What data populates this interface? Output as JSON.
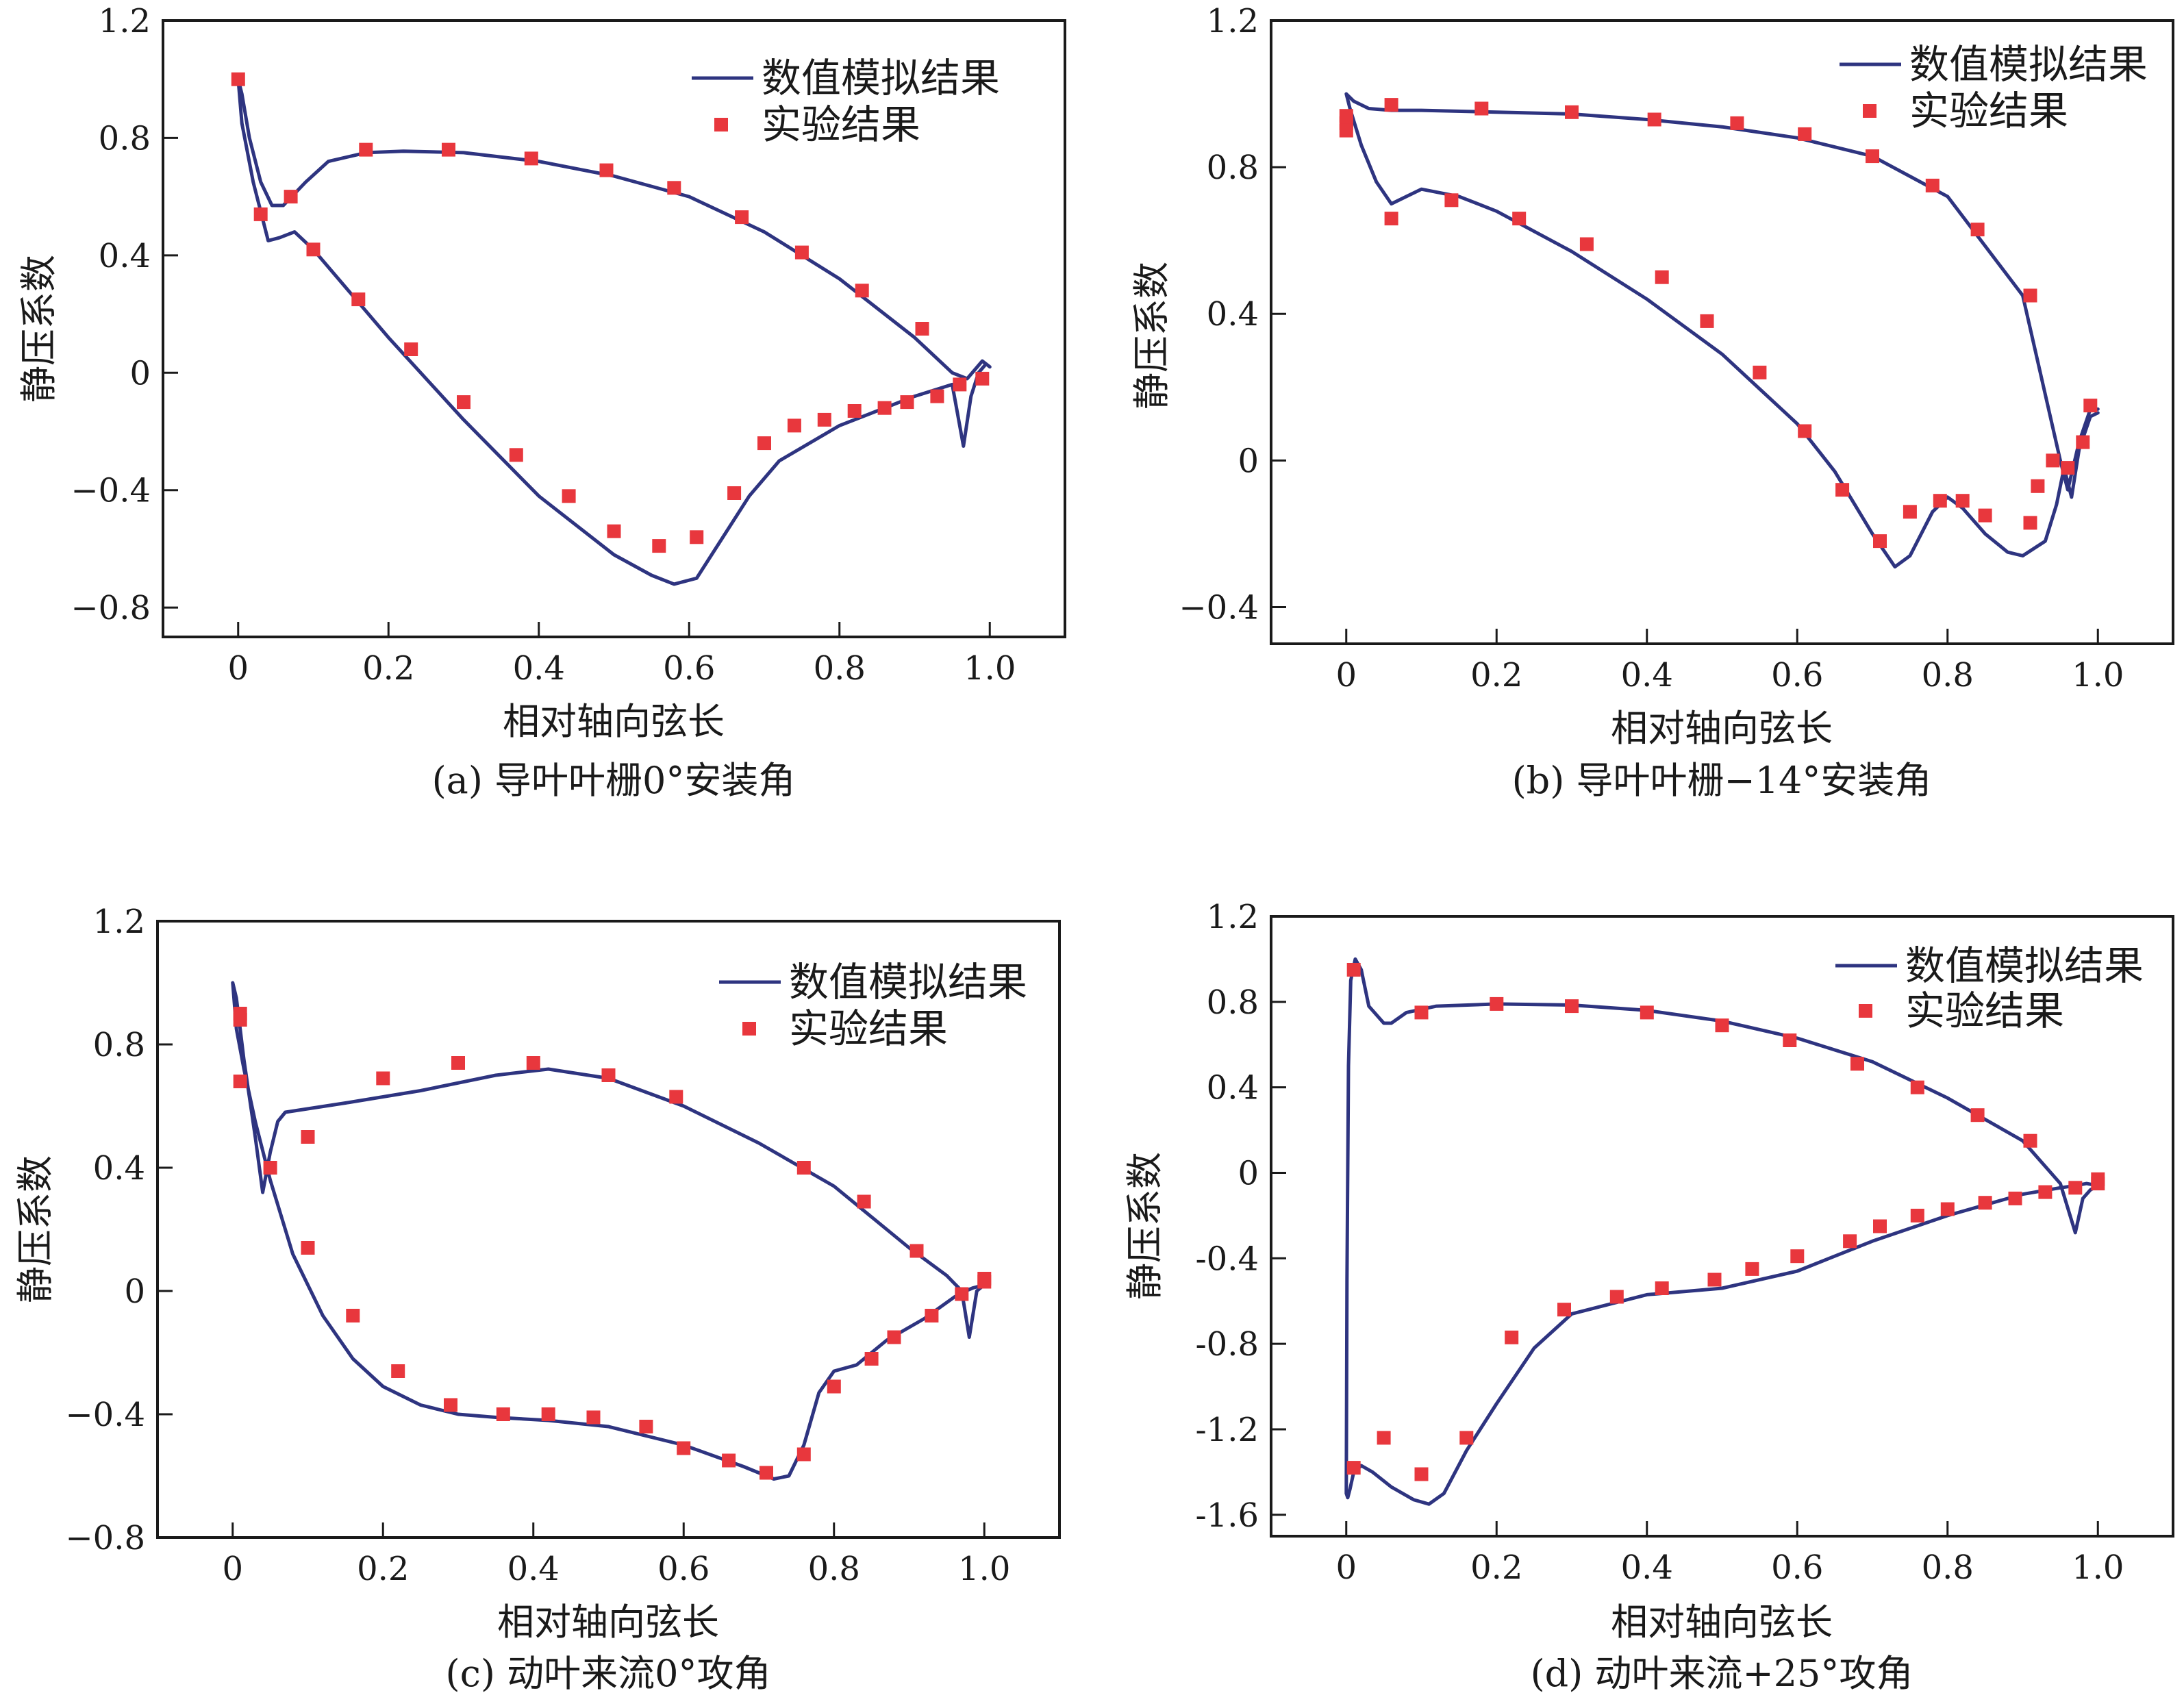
{
  "colors": {
    "line": "#2e3480",
    "marker": "#e8373d",
    "axis": "#1a1a1a"
  },
  "chart_data": [
    {
      "type": "line",
      "caption": "(a) 导叶叶栅0°安装角",
      "xlabel": "相对轴向弦长",
      "ylabel": "静压系数",
      "xlim": [
        -0.1,
        1.1
      ],
      "ylim": [
        -0.9,
        1.2
      ],
      "xticks": [
        0,
        0.2,
        0.4,
        0.6,
        0.8,
        1.0
      ],
      "xtick_labels": [
        "0",
        "0.2",
        "0.4",
        "0.6",
        "0.8",
        "1.0"
      ],
      "yticks": [
        -0.8,
        -0.4,
        0,
        0.4,
        0.8,
        1.2
      ],
      "ytick_labels": [
        "−0.8",
        "−0.4",
        "0",
        "0.4",
        "0.8",
        "1.2"
      ],
      "legend": [
        "数值模拟结果",
        "实验结果"
      ],
      "series": [
        {
          "name": "数值模拟结果",
          "kind": "line",
          "x": [
            1.0,
            0.99,
            0.97,
            0.95,
            0.9,
            0.8,
            0.7,
            0.65,
            0.6,
            0.5,
            0.4,
            0.3,
            0.22,
            0.17,
            0.12,
            0.09,
            0.06,
            0.045,
            0.03,
            0.015,
            0.005,
            0.0,
            0.005,
            0.02,
            0.04,
            0.055,
            0.075,
            0.1,
            0.2,
            0.3,
            0.4,
            0.5,
            0.55,
            0.58,
            0.61,
            0.64,
            0.68,
            0.72,
            0.8,
            0.9,
            0.95,
            0.965,
            0.975,
            0.985,
            0.995,
            1.0
          ],
          "y": [
            0.02,
            0.04,
            -0.02,
            0.0,
            0.12,
            0.32,
            0.48,
            0.54,
            0.6,
            0.67,
            0.72,
            0.75,
            0.755,
            0.75,
            0.72,
            0.65,
            0.57,
            0.57,
            0.65,
            0.8,
            0.95,
            1.0,
            0.85,
            0.65,
            0.45,
            0.46,
            0.48,
            0.42,
            0.12,
            -0.16,
            -0.42,
            -0.62,
            -0.69,
            -0.72,
            -0.7,
            -0.58,
            -0.42,
            -0.3,
            -0.18,
            -0.08,
            -0.04,
            -0.25,
            -0.08,
            0.0,
            0.03,
            0.02
          ]
        },
        {
          "name": "实验结果",
          "kind": "scatter",
          "x": [
            0.0,
            0.03,
            0.07,
            0.17,
            0.28,
            0.39,
            0.49,
            0.58,
            0.67,
            0.75,
            0.83,
            0.91,
            0.1,
            0.16,
            0.23,
            0.3,
            0.37,
            0.44,
            0.5,
            0.56,
            0.61,
            0.66,
            0.7,
            0.74,
            0.78,
            0.82,
            0.86,
            0.89,
            0.93,
            0.96,
            0.99
          ],
          "y": [
            1.0,
            0.54,
            0.6,
            0.76,
            0.76,
            0.73,
            0.69,
            0.63,
            0.53,
            0.41,
            0.28,
            0.15,
            0.42,
            0.25,
            0.08,
            -0.1,
            -0.28,
            -0.42,
            -0.54,
            -0.59,
            -0.56,
            -0.41,
            -0.24,
            -0.18,
            -0.16,
            -0.13,
            -0.12,
            -0.1,
            -0.08,
            -0.04,
            -0.02
          ]
        }
      ]
    },
    {
      "type": "line",
      "caption": "(b) 导叶叶栅−14°安装角",
      "xlabel": "相对轴向弦长",
      "ylabel": "静压系数",
      "xlim": [
        -0.1,
        1.1
      ],
      "ylim": [
        -0.5,
        1.2
      ],
      "xticks": [
        0,
        0.2,
        0.4,
        0.6,
        0.8,
        1.0
      ],
      "xtick_labels": [
        "0",
        "0.2",
        "0.4",
        "0.6",
        "0.8",
        "1.0"
      ],
      "yticks": [
        -0.4,
        0,
        0.4,
        0.8,
        1.2
      ],
      "ytick_labels": [
        "−0.4",
        "0",
        "0.4",
        "0.8",
        "1.2"
      ],
      "legend": [
        "数值模拟结果",
        "实验结果"
      ],
      "series": [
        {
          "name": "数值模拟结果",
          "kind": "line",
          "x": [
            1.0,
            0.99,
            0.975,
            0.96,
            0.95,
            0.9,
            0.8,
            0.7,
            0.6,
            0.5,
            0.4,
            0.3,
            0.2,
            0.1,
            0.06,
            0.03,
            0.01,
            0.0,
            0.005,
            0.02,
            0.04,
            0.06,
            0.08,
            0.1,
            0.15,
            0.2,
            0.3,
            0.4,
            0.5,
            0.6,
            0.65,
            0.7,
            0.73,
            0.75,
            0.78,
            0.8,
            0.82,
            0.85,
            0.88,
            0.9,
            0.93,
            0.945,
            0.955,
            0.965,
            0.975,
            0.99,
            1.0
          ],
          "y": [
            0.14,
            0.14,
            0.05,
            -0.08,
            0.0,
            0.45,
            0.72,
            0.83,
            0.88,
            0.91,
            0.93,
            0.945,
            0.95,
            0.955,
            0.955,
            0.96,
            0.98,
            1.0,
            0.96,
            0.86,
            0.76,
            0.7,
            0.72,
            0.74,
            0.72,
            0.68,
            0.57,
            0.44,
            0.29,
            0.1,
            -0.03,
            -0.2,
            -0.29,
            -0.26,
            -0.14,
            -0.1,
            -0.13,
            -0.2,
            -0.25,
            -0.26,
            -0.22,
            -0.12,
            -0.02,
            -0.1,
            0.03,
            0.12,
            0.13
          ]
        },
        {
          "name": "实验结果",
          "kind": "scatter",
          "x": [
            0.0,
            0.0,
            0.0,
            0.06,
            0.18,
            0.3,
            0.41,
            0.52,
            0.61,
            0.7,
            0.78,
            0.84,
            0.91,
            0.06,
            0.14,
            0.23,
            0.32,
            0.42,
            0.48,
            0.55,
            0.61,
            0.66,
            0.71,
            0.75,
            0.79,
            0.82,
            0.85,
            0.91,
            0.92,
            0.94,
            0.96,
            0.98,
            0.99
          ],
          "y": [
            0.94,
            0.92,
            0.9,
            0.97,
            0.96,
            0.95,
            0.93,
            0.92,
            0.89,
            0.83,
            0.75,
            0.63,
            0.45,
            0.66,
            0.71,
            0.66,
            0.59,
            0.5,
            0.38,
            0.24,
            0.08,
            -0.08,
            -0.22,
            -0.14,
            -0.11,
            -0.11,
            -0.15,
            -0.17,
            -0.07,
            0.0,
            -0.02,
            0.05,
            0.15
          ]
        }
      ]
    },
    {
      "type": "line",
      "caption": "(c) 动叶来流0°攻角",
      "xlabel": "相对轴向弦长",
      "ylabel": "静压系数",
      "xlim": [
        -0.1,
        1.1
      ],
      "ylim": [
        -0.8,
        1.2
      ],
      "xticks": [
        0,
        0.2,
        0.4,
        0.6,
        0.8,
        1.0
      ],
      "xtick_labels": [
        "0",
        "0.2",
        "0.4",
        "0.6",
        "0.8",
        "1.0"
      ],
      "yticks": [
        -0.8,
        -0.4,
        0,
        0.4,
        0.8,
        1.2
      ],
      "ytick_labels": [
        "−0.8",
        "−0.4",
        "0",
        "0.4",
        "0.8",
        "1.2"
      ],
      "legend": [
        "数值模拟结果",
        "实验结果"
      ],
      "series": [
        {
          "name": "数值模拟结果",
          "kind": "line",
          "x": [
            1.0,
            0.99,
            0.98,
            0.97,
            0.95,
            0.9,
            0.8,
            0.7,
            0.6,
            0.5,
            0.42,
            0.35,
            0.25,
            0.15,
            0.07,
            0.06,
            0.05,
            0.04,
            0.03,
            0.015,
            0.005,
            0.0,
            0.005,
            0.015,
            0.03,
            0.05,
            0.08,
            0.12,
            0.16,
            0.2,
            0.25,
            0.3,
            0.35,
            0.42,
            0.5,
            0.6,
            0.68,
            0.72,
            0.74,
            0.76,
            0.78,
            0.8,
            0.83,
            0.87,
            0.92,
            0.96,
            0.975,
            0.985,
            1.0
          ],
          "y": [
            0.02,
            0.0,
            -0.15,
            0.0,
            0.05,
            0.14,
            0.34,
            0.48,
            0.6,
            0.69,
            0.72,
            0.7,
            0.65,
            0.61,
            0.58,
            0.55,
            0.45,
            0.32,
            0.5,
            0.75,
            0.95,
            1.0,
            0.85,
            0.72,
            0.55,
            0.36,
            0.12,
            -0.08,
            -0.22,
            -0.31,
            -0.37,
            -0.4,
            -0.41,
            -0.42,
            -0.44,
            -0.5,
            -0.57,
            -0.61,
            -0.6,
            -0.5,
            -0.33,
            -0.26,
            -0.24,
            -0.16,
            -0.09,
            -0.02,
            0.0,
            0.01,
            0.02
          ]
        },
        {
          "name": "实验结果",
          "kind": "scatter",
          "x": [
            0.01,
            0.01,
            0.01,
            0.05,
            0.1,
            0.2,
            0.3,
            0.4,
            0.5,
            0.59,
            0.76,
            0.84,
            0.91,
            1.0,
            0.1,
            0.16,
            0.22,
            0.29,
            0.36,
            0.42,
            0.48,
            0.55,
            0.6,
            0.66,
            0.71,
            0.76,
            0.8,
            0.85,
            0.88,
            0.93,
            0.97,
            1.0
          ],
          "y": [
            0.88,
            0.9,
            0.68,
            0.4,
            0.5,
            0.69,
            0.74,
            0.74,
            0.7,
            0.63,
            0.4,
            0.29,
            0.13,
            0.03,
            0.14,
            -0.08,
            -0.26,
            -0.37,
            -0.4,
            -0.4,
            -0.41,
            -0.44,
            -0.51,
            -0.55,
            -0.59,
            -0.53,
            -0.31,
            -0.22,
            -0.15,
            -0.08,
            -0.01,
            0.04
          ]
        }
      ]
    },
    {
      "type": "line",
      "caption": "(d) 动叶来流+25°攻角",
      "xlabel": "相对轴向弦长",
      "ylabel": "静压系数",
      "xlim": [
        -0.1,
        1.1
      ],
      "ylim": [
        -1.7,
        1.2
      ],
      "xticks": [
        0,
        0.2,
        0.4,
        0.6,
        0.8,
        1.0
      ],
      "xtick_labels": [
        "0",
        "0.2",
        "0.4",
        "0.6",
        "0.8",
        "1.0"
      ],
      "yticks": [
        -1.6,
        -1.2,
        -0.8,
        -0.4,
        0,
        0.4,
        0.8,
        1.2
      ],
      "ytick_labels": [
        "-1.6",
        "-1.2",
        "-0.8",
        "-0.4",
        "0",
        "0.4",
        "0.8",
        "1.2"
      ],
      "legend": [
        "数值模拟结果",
        "实验结果"
      ],
      "series": [
        {
          "name": "数值模拟结果",
          "kind": "line",
          "x": [
            1.0,
            0.99,
            0.98,
            0.97,
            0.95,
            0.9,
            0.8,
            0.7,
            0.6,
            0.5,
            0.4,
            0.3,
            0.2,
            0.12,
            0.08,
            0.06,
            0.05,
            0.03,
            0.02,
            0.012,
            0.006,
            0.003,
            0.001,
            0.0,
            0.002,
            0.005,
            0.01,
            0.02,
            0.035,
            0.06,
            0.09,
            0.11,
            0.13,
            0.16,
            0.2,
            0.25,
            0.3,
            0.4,
            0.5,
            0.6,
            0.7,
            0.8,
            0.9,
            0.95,
            0.97,
            0.985,
            1.0
          ],
          "y": [
            -0.06,
            -0.08,
            -0.12,
            -0.28,
            -0.05,
            0.15,
            0.35,
            0.52,
            0.63,
            0.71,
            0.76,
            0.785,
            0.79,
            0.78,
            0.75,
            0.7,
            0.7,
            0.78,
            0.95,
            1.0,
            0.9,
            0.5,
            -0.5,
            -1.5,
            -1.52,
            -1.48,
            -1.4,
            -1.37,
            -1.4,
            -1.47,
            -1.53,
            -1.55,
            -1.5,
            -1.3,
            -1.08,
            -0.82,
            -0.66,
            -0.57,
            -0.54,
            -0.46,
            -0.32,
            -0.2,
            -0.1,
            -0.07,
            -0.06,
            -0.05,
            -0.06
          ]
        },
        {
          "name": "实验结果",
          "kind": "scatter",
          "x": [
            0.01,
            0.1,
            0.2,
            0.3,
            0.4,
            0.5,
            0.59,
            0.68,
            0.76,
            0.84,
            0.91,
            1.0,
            0.01,
            0.05,
            0.1,
            0.16,
            0.22,
            0.29,
            0.36,
            0.42,
            0.49,
            0.54,
            0.6,
            0.67,
            0.71,
            0.76,
            0.8,
            0.85,
            0.89,
            0.93,
            0.97,
            1.0
          ],
          "y": [
            0.95,
            0.75,
            0.79,
            0.78,
            0.75,
            0.69,
            0.62,
            0.51,
            0.4,
            0.27,
            0.15,
            -0.05,
            -1.38,
            -1.24,
            -1.41,
            -1.24,
            -0.77,
            -0.64,
            -0.58,
            -0.54,
            -0.5,
            -0.45,
            -0.39,
            -0.32,
            -0.25,
            -0.2,
            -0.17,
            -0.14,
            -0.12,
            -0.09,
            -0.07,
            -0.03
          ]
        }
      ]
    }
  ]
}
